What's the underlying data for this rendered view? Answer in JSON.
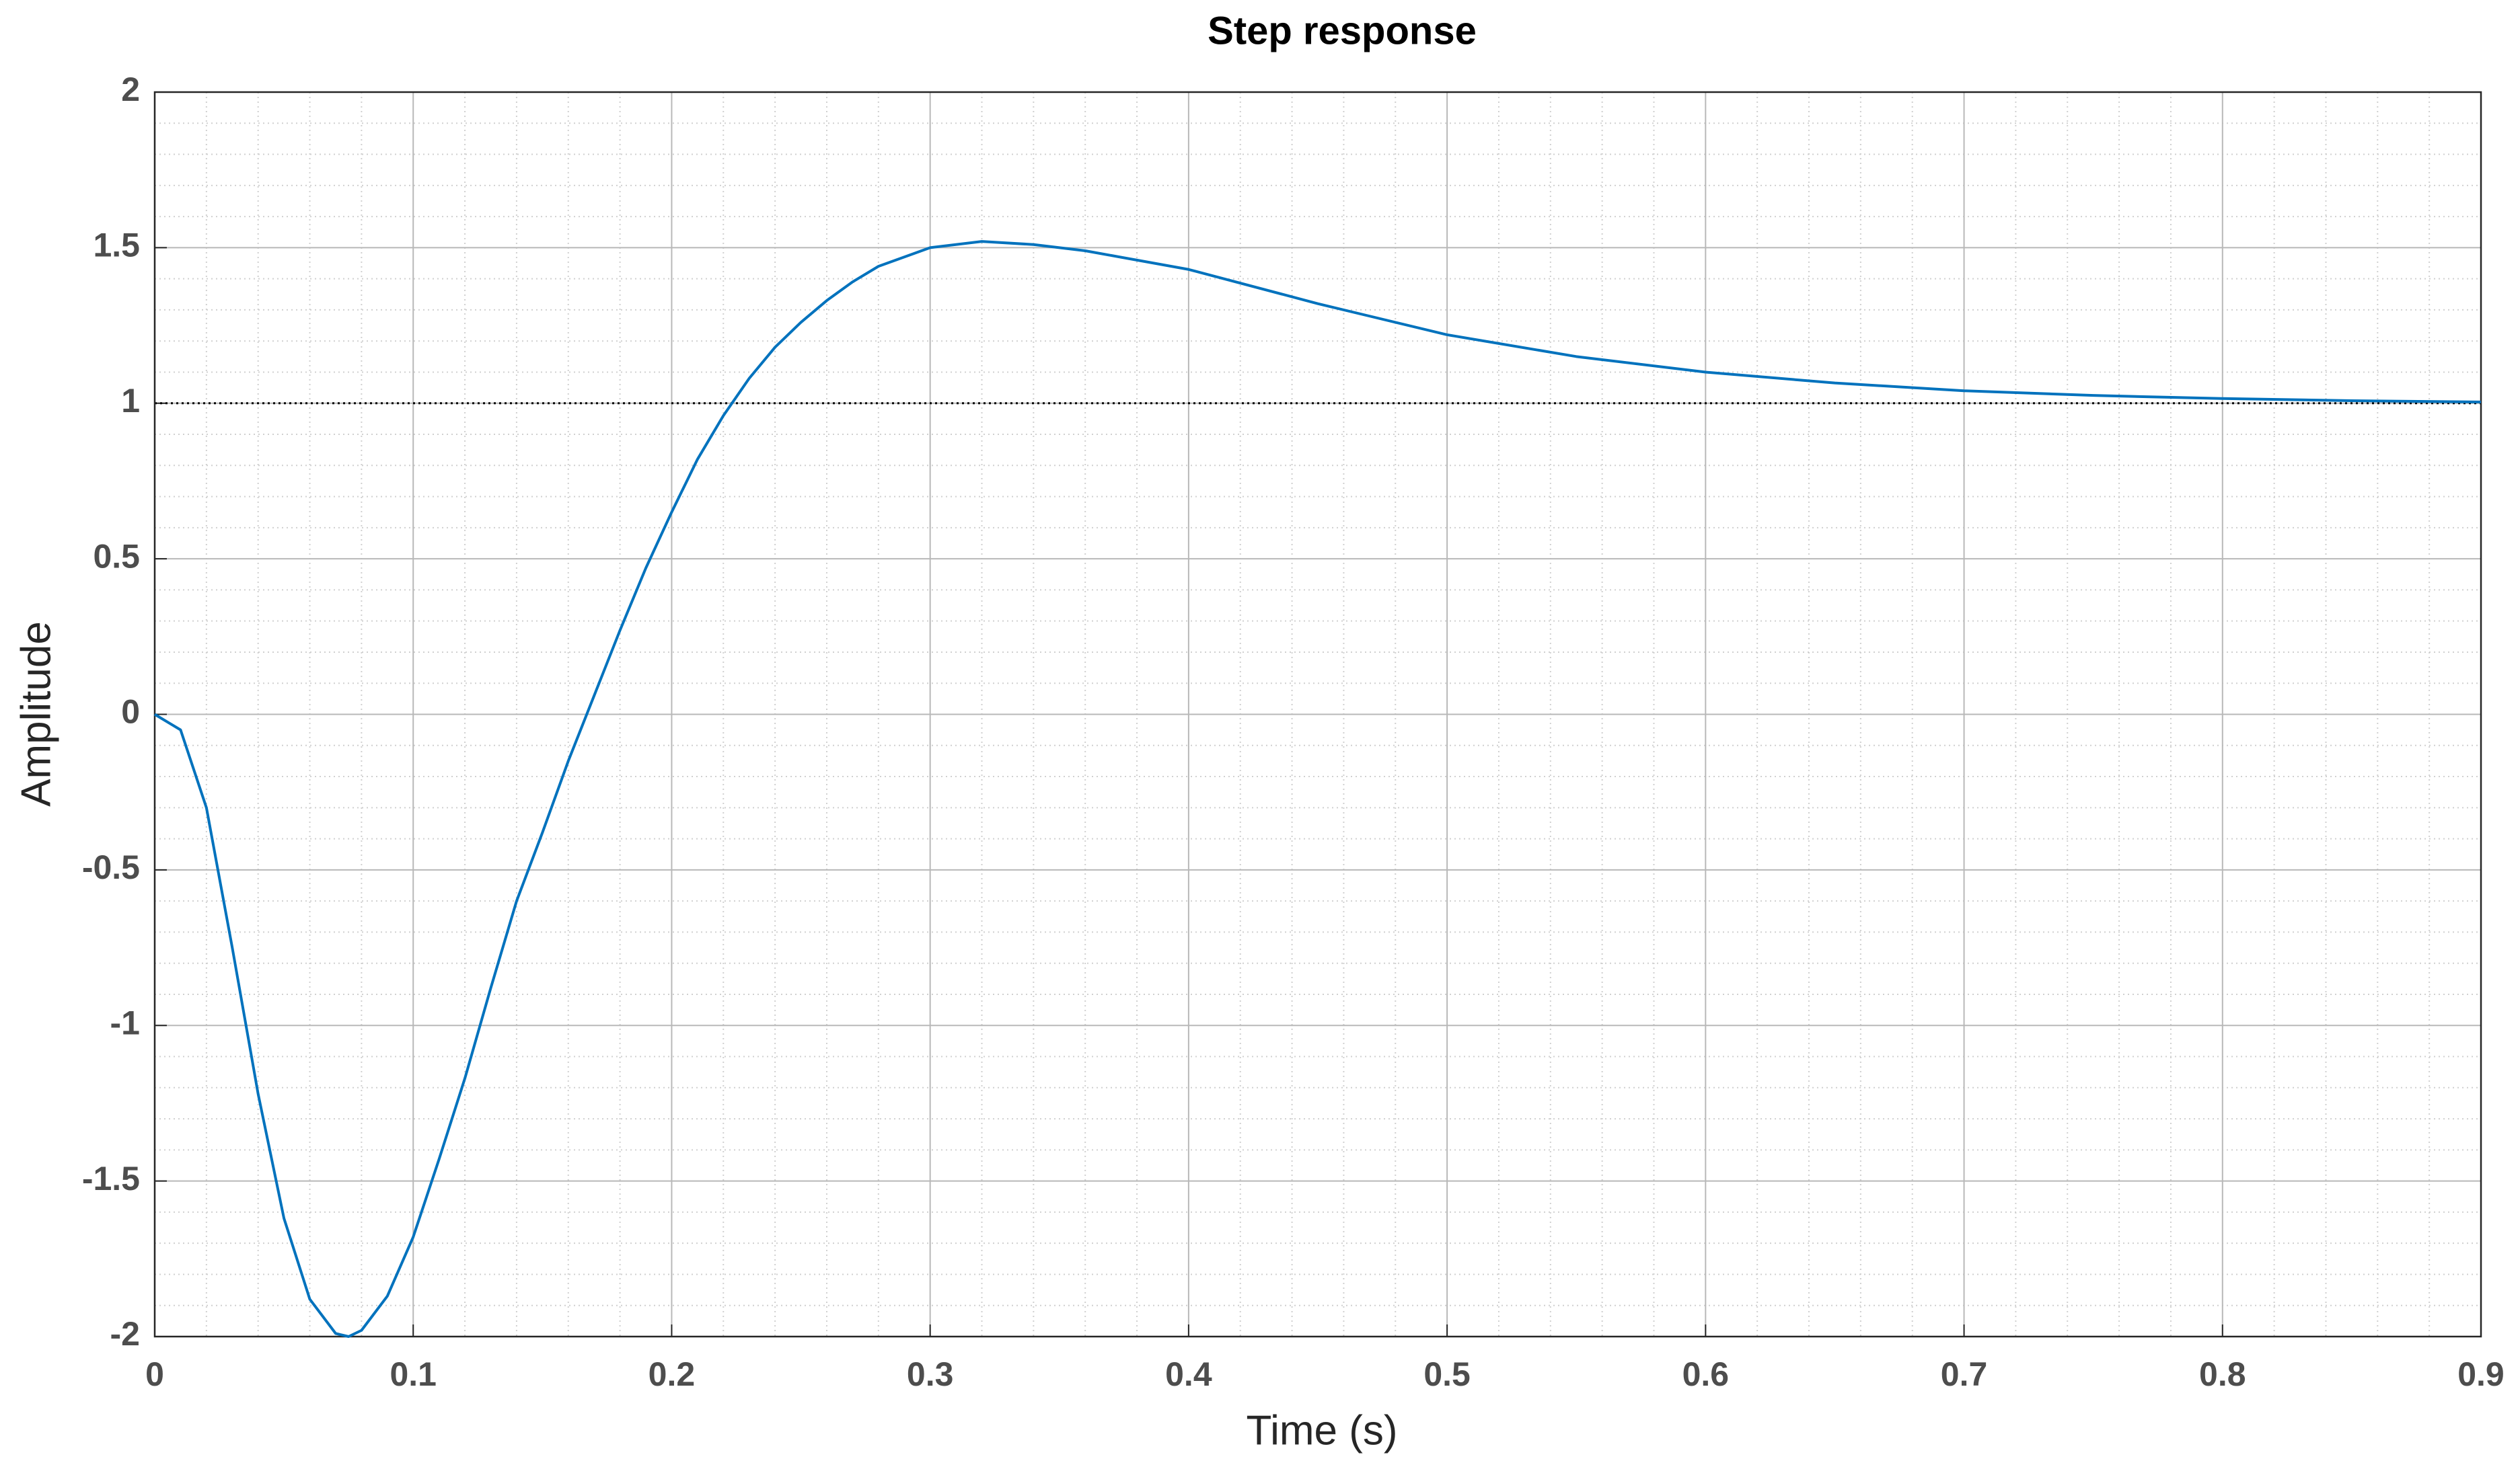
{
  "chart_data": {
    "type": "line",
    "title": "Step response",
    "x_label": "Time (s)",
    "y_label": "Amplitude",
    "x": [
      0,
      0.01,
      0.02,
      0.03,
      0.04,
      0.05,
      0.06,
      0.07,
      0.075,
      0.08,
      0.09,
      0.1,
      0.11,
      0.12,
      0.13,
      0.14,
      0.15,
      0.16,
      0.17,
      0.18,
      0.19,
      0.2,
      0.21,
      0.22,
      0.23,
      0.24,
      0.25,
      0.26,
      0.27,
      0.28,
      0.29,
      0.3,
      0.32,
      0.34,
      0.36,
      0.38,
      0.4,
      0.45,
      0.5,
      0.55,
      0.6,
      0.65,
      0.7,
      0.75,
      0.8,
      0.85,
      0.9
    ],
    "series": [
      {
        "name": "Step response",
        "color": "#0072bd",
        "values": [
          0,
          -0.05,
          -0.3,
          -0.75,
          -1.22,
          -1.62,
          -1.88,
          -1.99,
          -2.0,
          -1.98,
          -1.87,
          -1.68,
          -1.43,
          -1.17,
          -0.88,
          -0.6,
          -0.38,
          -0.15,
          0.06,
          0.27,
          0.47,
          0.65,
          0.82,
          0.96,
          1.08,
          1.18,
          1.26,
          1.33,
          1.39,
          1.44,
          1.47,
          1.5,
          1.52,
          1.51,
          1.49,
          1.46,
          1.43,
          1.32,
          1.22,
          1.15,
          1.1,
          1.065,
          1.04,
          1.025,
          1.015,
          1.008,
          1.004
        ]
      }
    ],
    "xlim": [
      0,
      0.9
    ],
    "ylim": [
      -2,
      2
    ],
    "xticks": [
      0,
      0.1,
      0.2,
      0.3,
      0.4,
      0.5,
      0.6,
      0.7,
      0.8,
      0.9
    ],
    "yticks": [
      -2,
      -1.5,
      -1,
      -0.5,
      0,
      0.5,
      1,
      1.5,
      2
    ],
    "grid": true,
    "minor_grid_divisions": 5,
    "reference_line": 1
  }
}
